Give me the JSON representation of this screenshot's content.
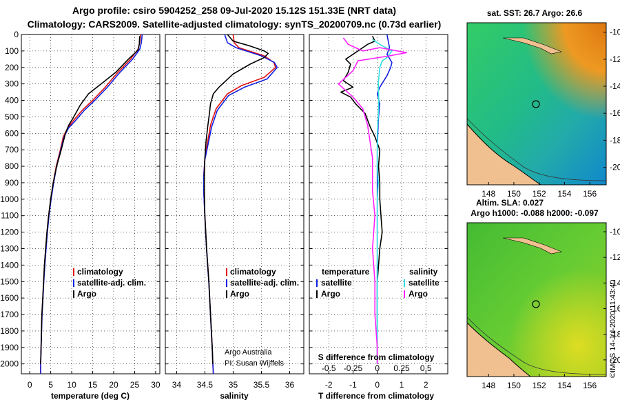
{
  "header": {
    "line1": "Argo profile: csiro 5904252_258 09-Jul-2020 15.12S 151.33E (NRT data)",
    "line2": "Climatology: CARS2009. Satellite-adjusted climatology: synTS_20200709.nc (0.73d earlier)"
  },
  "colors": {
    "climatology": "#e01010",
    "satellite": "#1020e0",
    "argo": "#000000",
    "sat_salinity": "#30e0e0",
    "argo_salinity": "#ff20ff"
  },
  "chart_data": [
    {
      "type": "line",
      "name": "temperature",
      "xlabel": "temperature (deg C)",
      "ylabel": "",
      "xlim": [
        -2,
        31
      ],
      "ylim": [
        2060,
        0
      ],
      "xticks": [
        "0",
        "5",
        "10",
        "15",
        "20",
        "25",
        "30"
      ],
      "yticks": [
        "0",
        "100",
        "200",
        "300",
        "400",
        "500",
        "600",
        "700",
        "800",
        "900",
        "1000",
        "1100",
        "1200",
        "1300",
        "1400",
        "1500",
        "1600",
        "1700",
        "1800",
        "1900",
        "2000"
      ],
      "legend": [
        "climatology",
        "satellite-adj. clim.",
        "Argo"
      ],
      "series": [
        {
          "name": "climatology",
          "color": "red",
          "points": [
            [
              26.4,
              0
            ],
            [
              26.2,
              50
            ],
            [
              25.8,
              90
            ],
            [
              24,
              150
            ],
            [
              21,
              230
            ],
            [
              18,
              320
            ],
            [
              15,
              400
            ],
            [
              12.5,
              460
            ],
            [
              10.5,
              520
            ],
            [
              9,
              570
            ],
            [
              8,
              620
            ],
            [
              7.3,
              700
            ],
            [
              6.3,
              800
            ],
            [
              5.6,
              900
            ],
            [
              5,
              1000
            ],
            [
              4.5,
              1100
            ],
            [
              4.1,
              1200
            ],
            [
              3.8,
              1300
            ],
            [
              3.5,
              1400
            ],
            [
              3.3,
              1500
            ],
            [
              3.1,
              1600
            ],
            [
              2.9,
              1700
            ],
            [
              2.8,
              1800
            ],
            [
              2.7,
              1900
            ],
            [
              2.6,
              2000
            ],
            [
              2.6,
              2060
            ]
          ]
        },
        {
          "name": "satellite",
          "color": "blue",
          "points": [
            [
              26.8,
              0
            ],
            [
              26.6,
              50
            ],
            [
              26.2,
              90
            ],
            [
              24.5,
              150
            ],
            [
              21.5,
              230
            ],
            [
              18.5,
              320
            ],
            [
              15.5,
              400
            ],
            [
              13,
              460
            ],
            [
              11,
              520
            ],
            [
              9.2,
              570
            ],
            [
              8.2,
              620
            ],
            [
              7.4,
              700
            ],
            [
              6.4,
              800
            ],
            [
              5.7,
              900
            ],
            [
              5.1,
              1000
            ],
            [
              4.6,
              1100
            ],
            [
              4.2,
              1200
            ],
            [
              3.9,
              1300
            ],
            [
              3.6,
              1400
            ],
            [
              3.35,
              1500
            ],
            [
              3.15,
              1600
            ],
            [
              2.95,
              1700
            ],
            [
              2.82,
              1800
            ],
            [
              2.72,
              1900
            ],
            [
              2.62,
              2000
            ],
            [
              2.6,
              2060
            ]
          ]
        },
        {
          "name": "Argo",
          "color": "black",
          "points": [
            [
              26.2,
              10
            ],
            [
              26.1,
              60
            ],
            [
              25.8,
              95
            ],
            [
              23.5,
              150
            ],
            [
              20.5,
              230
            ],
            [
              17,
              300
            ],
            [
              14,
              360
            ],
            [
              12,
              430
            ],
            [
              10.5,
              500
            ],
            [
              9.3,
              550
            ],
            [
              8.5,
              600
            ],
            [
              7.5,
              700
            ],
            [
              6.4,
              800
            ],
            [
              5.6,
              900
            ],
            [
              5,
              1000
            ],
            [
              4.5,
              1100
            ],
            [
              4.1,
              1200
            ],
            [
              3.8,
              1300
            ],
            [
              3.5,
              1400
            ],
            [
              3.3,
              1500
            ],
            [
              3.1,
              1600
            ],
            [
              2.9,
              1700
            ],
            [
              2.8,
              1800
            ],
            [
              2.7,
              1900
            ],
            [
              2.6,
              2000
            ]
          ]
        }
      ]
    },
    {
      "type": "line",
      "name": "salinity",
      "xlabel": "salinity",
      "xlim": [
        33.8,
        36.25
      ],
      "ylim": [
        2060,
        0
      ],
      "xticks": [
        "34",
        "34.5",
        "35",
        "35.5",
        "36"
      ],
      "legend": [
        "climatology",
        "satellite-adj. clim.",
        "Argo"
      ],
      "annotation": [
        "Argo Australia",
        "PI: Susan Wijffels"
      ],
      "series": [
        {
          "name": "climatology",
          "color": "red",
          "points": [
            [
              35,
              0
            ],
            [
              35.02,
              50
            ],
            [
              35.1,
              80
            ],
            [
              35.55,
              130
            ],
            [
              35.72,
              170
            ],
            [
              35.75,
              200
            ],
            [
              35.55,
              260
            ],
            [
              35.15,
              310
            ],
            [
              34.9,
              360
            ],
            [
              34.7,
              450
            ],
            [
              34.6,
              550
            ],
            [
              34.55,
              650
            ],
            [
              34.5,
              750
            ],
            [
              34.48,
              850
            ],
            [
              34.48,
              950
            ],
            [
              34.5,
              1100
            ],
            [
              34.53,
              1300
            ],
            [
              34.57,
              1500
            ],
            [
              34.6,
              1700
            ],
            [
              34.63,
              1900
            ],
            [
              34.64,
              2000
            ],
            [
              34.65,
              2060
            ]
          ]
        },
        {
          "name": "satellite",
          "color": "blue",
          "points": [
            [
              34.85,
              0
            ],
            [
              34.9,
              50
            ],
            [
              35.05,
              80
            ],
            [
              35.5,
              130
            ],
            [
              35.73,
              170
            ],
            [
              35.78,
              200
            ],
            [
              35.6,
              270
            ],
            [
              35.2,
              320
            ],
            [
              34.92,
              370
            ],
            [
              34.72,
              460
            ],
            [
              34.62,
              560
            ],
            [
              34.56,
              660
            ],
            [
              34.5,
              760
            ],
            [
              34.48,
              860
            ],
            [
              34.48,
              960
            ],
            [
              34.5,
              1110
            ],
            [
              34.53,
              1310
            ],
            [
              34.57,
              1510
            ],
            [
              34.6,
              1710
            ],
            [
              34.63,
              1910
            ],
            [
              34.65,
              2060
            ]
          ]
        },
        {
          "name": "Argo",
          "color": "black",
          "points": [
            [
              34.9,
              0
            ],
            [
              35.0,
              40
            ],
            [
              35.3,
              70
            ],
            [
              35.55,
              100
            ],
            [
              35.62,
              115
            ],
            [
              35.55,
              140
            ],
            [
              35.3,
              180
            ],
            [
              35.0,
              240
            ],
            [
              34.75,
              320
            ],
            [
              34.65,
              360
            ],
            [
              34.6,
              420
            ],
            [
              34.58,
              480
            ],
            [
              34.55,
              560
            ],
            [
              34.52,
              650
            ],
            [
              34.5,
              750
            ],
            [
              34.49,
              850
            ],
            [
              34.49,
              950
            ],
            [
              34.5,
              1100
            ],
            [
              34.53,
              1300
            ],
            [
              34.57,
              1500
            ],
            [
              34.6,
              1700
            ],
            [
              34.63,
              1900
            ],
            [
              34.64,
              2000
            ]
          ]
        }
      ]
    },
    {
      "type": "line",
      "name": "difference from climatology",
      "xlabel": "T difference from climatology",
      "xlim": [
        -2.8,
        2.9
      ],
      "ylim": [
        2060,
        0
      ],
      "xticks": [
        "-2",
        "-1",
        "0",
        "1",
        "2"
      ],
      "xticks_top": [
        "-0.5",
        "-0.25",
        "0",
        "0.25",
        "0.5"
      ],
      "top_axis_label": "S difference from climatology",
      "legend_headers": [
        "temperature",
        "salinity"
      ],
      "legend_left": [
        "satellite",
        "Argo"
      ],
      "legend_right": [
        "satellite",
        "Argo"
      ],
      "series": [
        {
          "name": "T satellite",
          "color": "blue",
          "points": [
            [
              0.4,
              0
            ],
            [
              0.45,
              40
            ],
            [
              0.5,
              80
            ],
            [
              0.4,
              120
            ],
            [
              0.6,
              170
            ],
            [
              0.55,
              200
            ],
            [
              0.4,
              250
            ],
            [
              0.1,
              320
            ],
            [
              0.0,
              360
            ],
            [
              0.1,
              420
            ],
            [
              0.05,
              500
            ],
            [
              0.02,
              600
            ],
            [
              0,
              700
            ],
            [
              0,
              1000
            ],
            [
              0,
              1500
            ],
            [
              0,
              2000
            ]
          ]
        },
        {
          "name": "T Argo",
          "color": "black",
          "points": [
            [
              -0.2,
              10
            ],
            [
              -0.1,
              40
            ],
            [
              -0.4,
              60
            ],
            [
              -0.6,
              80
            ],
            [
              -1.0,
              120
            ],
            [
              -1.3,
              150
            ],
            [
              -1.1,
              180
            ],
            [
              -1.2,
              230
            ],
            [
              -1.4,
              280
            ],
            [
              -1.0,
              320
            ],
            [
              -1.5,
              350
            ],
            [
              -1.1,
              380
            ],
            [
              -0.9,
              420
            ],
            [
              -0.5,
              480
            ],
            [
              -0.3,
              560
            ],
            [
              -0.1,
              620
            ],
            [
              0.1,
              700
            ],
            [
              0.05,
              800
            ],
            [
              0.1,
              900
            ],
            [
              0.1,
              1000
            ],
            [
              0.15,
              1100
            ],
            [
              0.2,
              1200
            ],
            [
              0.1,
              1300
            ],
            [
              0.05,
              1400
            ],
            [
              0,
              1500
            ],
            [
              0,
              2000
            ]
          ]
        },
        {
          "name": "S satellite",
          "color": "cyan",
          "points": [
            [
              -0.1,
              30
            ],
            [
              0.05,
              60
            ],
            [
              0.3,
              100
            ],
            [
              0.2,
              140
            ],
            [
              0.1,
              160
            ],
            [
              0.05,
              200
            ],
            [
              0.02,
              300
            ],
            [
              0.03,
              400
            ],
            [
              0.02,
              500
            ],
            [
              0,
              600
            ],
            [
              0,
              800
            ],
            [
              0.02,
              900
            ],
            [
              0,
              1000
            ],
            [
              0,
              2000
            ]
          ]
        },
        {
          "name": "S Argo",
          "color": "magenta",
          "points": [
            [
              -0.7,
              20
            ],
            [
              -0.6,
              60
            ],
            [
              -0.3,
              100
            ],
            [
              0.05,
              80
            ],
            [
              0.6,
              110
            ],
            [
              0.25,
              130
            ],
            [
              -0.4,
              160
            ],
            [
              -0.5,
              220
            ],
            [
              -0.8,
              300
            ],
            [
              -0.5,
              380
            ],
            [
              -0.3,
              450
            ],
            [
              -0.2,
              550
            ],
            [
              -0.15,
              650
            ],
            [
              -0.1,
              750
            ],
            [
              -0.1,
              850
            ],
            [
              -0.1,
              950
            ],
            [
              -0.05,
              1100
            ],
            [
              -0.1,
              1300
            ],
            [
              -0.05,
              1500
            ],
            [
              -0.05,
              1700
            ],
            [
              0,
              1900
            ],
            [
              0,
              2000
            ]
          ]
        }
      ]
    },
    {
      "type": "heatmap",
      "name": "SST map",
      "title": "sat. SST: 26.7 Argo: 26.6",
      "xticks": [
        "148",
        "150",
        "152",
        "154",
        "156"
      ],
      "yticks": [
        "-10",
        "-12",
        "-14",
        "-16",
        "-18",
        "-20"
      ],
      "marker": {
        "lon": 151.33,
        "lat": -15.12
      }
    },
    {
      "type": "heatmap",
      "name": "SLA map",
      "title": "Altim. SLA: 0.027",
      "subtitle": "Argo h1000: -0.088 h2000: -0.097",
      "xticks": [
        "148",
        "150",
        "152",
        "154",
        "156"
      ],
      "yticks": [
        "-10",
        "-12",
        "-14",
        "-16",
        "-18",
        "-20"
      ],
      "marker": {
        "lon": 151.33,
        "lat": -15.12
      }
    }
  ],
  "footer": {
    "imos": "©IMOS 14-Jul-2020 11:43:40"
  }
}
